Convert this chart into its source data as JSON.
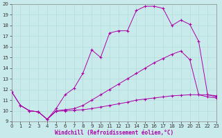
{
  "xlabel": "Windchill (Refroidissement éolien,°C)",
  "bg_color": "#c8eaea",
  "grid_color": "#b8dede",
  "line_color": "#aa00aa",
  "xlim": [
    0,
    23
  ],
  "ylim": [
    9,
    20
  ],
  "xticks": [
    0,
    1,
    2,
    3,
    4,
    5,
    6,
    7,
    8,
    9,
    10,
    11,
    12,
    13,
    14,
    15,
    16,
    17,
    18,
    19,
    20,
    21,
    22,
    23
  ],
  "yticks": [
    9,
    10,
    11,
    12,
    13,
    14,
    15,
    16,
    17,
    18,
    19,
    20
  ],
  "line1_x": [
    0,
    1,
    2,
    3,
    4,
    5,
    6,
    7,
    8,
    9,
    10,
    11,
    12,
    13,
    14,
    15,
    16,
    17,
    18,
    19,
    20,
    21,
    22,
    23
  ],
  "line1_y": [
    11.8,
    10.5,
    10.0,
    9.9,
    9.2,
    9.95,
    10.0,
    10.05,
    10.1,
    10.2,
    10.35,
    10.5,
    10.65,
    10.8,
    11.0,
    11.1,
    11.2,
    11.3,
    11.4,
    11.45,
    11.5,
    11.5,
    11.5,
    11.4
  ],
  "line2_x": [
    0,
    1,
    2,
    3,
    4,
    5,
    6,
    7,
    8,
    9,
    10,
    11,
    12,
    13,
    14,
    15,
    16,
    17,
    18,
    19,
    20,
    21,
    22,
    23
  ],
  "line2_y": [
    11.8,
    10.5,
    10.0,
    9.9,
    9.2,
    10.0,
    10.1,
    10.2,
    10.5,
    11.0,
    11.5,
    12.0,
    12.5,
    13.0,
    13.5,
    14.0,
    14.5,
    14.9,
    15.3,
    15.6,
    14.8,
    11.5,
    11.3,
    11.2
  ],
  "line3_x": [
    1,
    2,
    3,
    4,
    5,
    6,
    7,
    8,
    9,
    10,
    11,
    12,
    13,
    14,
    15,
    16,
    17,
    18,
    19,
    20,
    21,
    22,
    23
  ],
  "line3_y": [
    10.5,
    10.0,
    9.9,
    9.2,
    10.2,
    11.5,
    12.1,
    13.5,
    15.7,
    15.0,
    17.3,
    17.5,
    17.5,
    19.4,
    19.8,
    19.8,
    19.6,
    18.0,
    18.5,
    18.1,
    16.5,
    11.5,
    11.3
  ],
  "marker": "+",
  "markersize": 2.5,
  "linewidth": 0.7,
  "tick_fontsize": 5.0,
  "xlabel_fontsize": 5.5
}
